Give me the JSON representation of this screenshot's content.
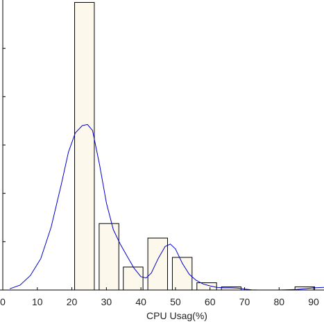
{
  "chart_data": {
    "type": "bar",
    "title": "",
    "xlabel": "CPU Usag(%)",
    "ylabel": "",
    "xlim": [
      0,
      93
    ],
    "ylim": [
      0,
      0.12
    ],
    "grid": false,
    "legend": "none",
    "xticks": [
      0,
      10,
      20,
      30,
      40,
      50,
      60,
      70,
      80,
      90
    ],
    "xtick_labels": [
      "0",
      "10",
      "20",
      "30",
      "40",
      "50",
      "60",
      "70",
      "80",
      "90"
    ],
    "ytick_values": [
      0.02,
      0.04,
      0.06,
      0.08,
      0.1
    ],
    "bar_fill": "#fdf8ec",
    "bar_stroke": "#000000",
    "curve_color": "#0000cc",
    "bins": [
      {
        "x0": 20.8,
        "x1": 26.5,
        "value": 0.119
      },
      {
        "x0": 27.9,
        "x1": 33.6,
        "value": 0.0275
      },
      {
        "x0": 34.9,
        "x1": 40.6,
        "value": 0.0095
      },
      {
        "x0": 42.0,
        "x1": 47.7,
        "value": 0.0215
      },
      {
        "x0": 49.1,
        "x1": 54.8,
        "value": 0.0135
      },
      {
        "x0": 56.2,
        "x1": 61.9,
        "value": 0.003
      },
      {
        "x0": 63.3,
        "x1": 69.0,
        "value": 0.0013
      },
      {
        "x0": 70.4,
        "x1": 76.1,
        "value": 0.0
      },
      {
        "x0": 77.5,
        "x1": 83.2,
        "value": 0.0
      },
      {
        "x0": 84.6,
        "x1": 90.3,
        "value": 0.0013
      }
    ],
    "density_curve": {
      "x": [
        2,
        5,
        8,
        11,
        14,
        17,
        19,
        21,
        23,
        24.5,
        26,
        28,
        30,
        32,
        34,
        36,
        38,
        40,
        41.5,
        43,
        45,
        47,
        48.5,
        50,
        52,
        54,
        56,
        58,
        60,
        62,
        64,
        66,
        68,
        70,
        72,
        74,
        76,
        80,
        85,
        88,
        90,
        93
      ],
      "y": [
        0.0005,
        0.002,
        0.006,
        0.013,
        0.026,
        0.044,
        0.057,
        0.065,
        0.068,
        0.0685,
        0.066,
        0.052,
        0.036,
        0.025,
        0.019,
        0.014,
        0.009,
        0.0055,
        0.005,
        0.007,
        0.013,
        0.018,
        0.019,
        0.017,
        0.011,
        0.0065,
        0.004,
        0.0025,
        0.0017,
        0.0011,
        0.0009,
        0.0009,
        0.0008,
        0.0004,
        0.0001,
        0.0,
        0.0,
        0.0,
        0.0002,
        0.0006,
        0.0009,
        0.0011
      ]
    }
  }
}
